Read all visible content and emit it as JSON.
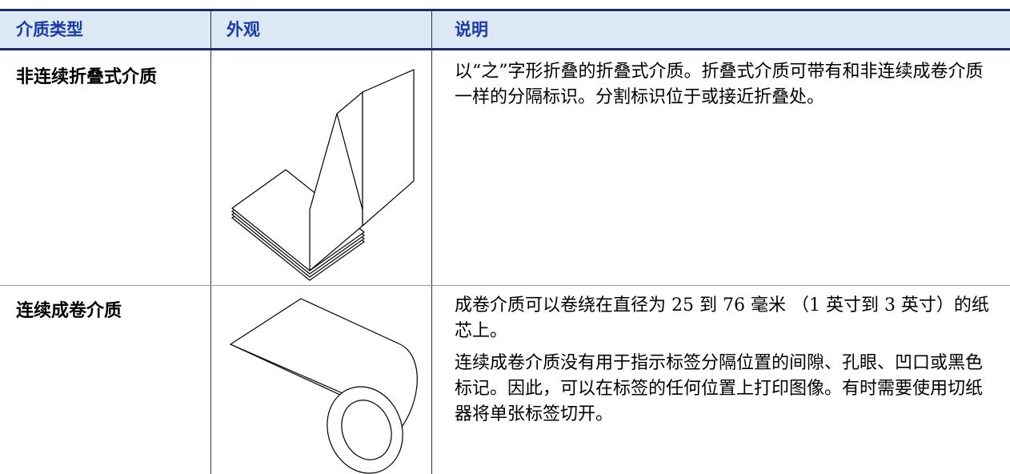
{
  "table": {
    "columns": [
      "介质类型",
      "外观",
      "说明"
    ],
    "rows": [
      {
        "type": "非连续折叠式介质",
        "description": [
          "以“之”字形折叠的折叠式介质。折叠式介质可带有和非连续成卷介质一样的分隔标识。分割标识位于或接近折叠处。"
        ]
      },
      {
        "type": "连续成卷介质",
        "description": [
          "成卷介质可以卷绕在直径为 25 到 76 毫米 （1 英寸到 3 英寸）的纸芯上。",
          "连续成卷介质没有用于指示标签分隔位置的间隙、孔眼、凹口或黑色标记。因此，可以在标签的任何位置上打印图像。有时需要使用切纸器将单张标签切开。"
        ]
      }
    ]
  }
}
